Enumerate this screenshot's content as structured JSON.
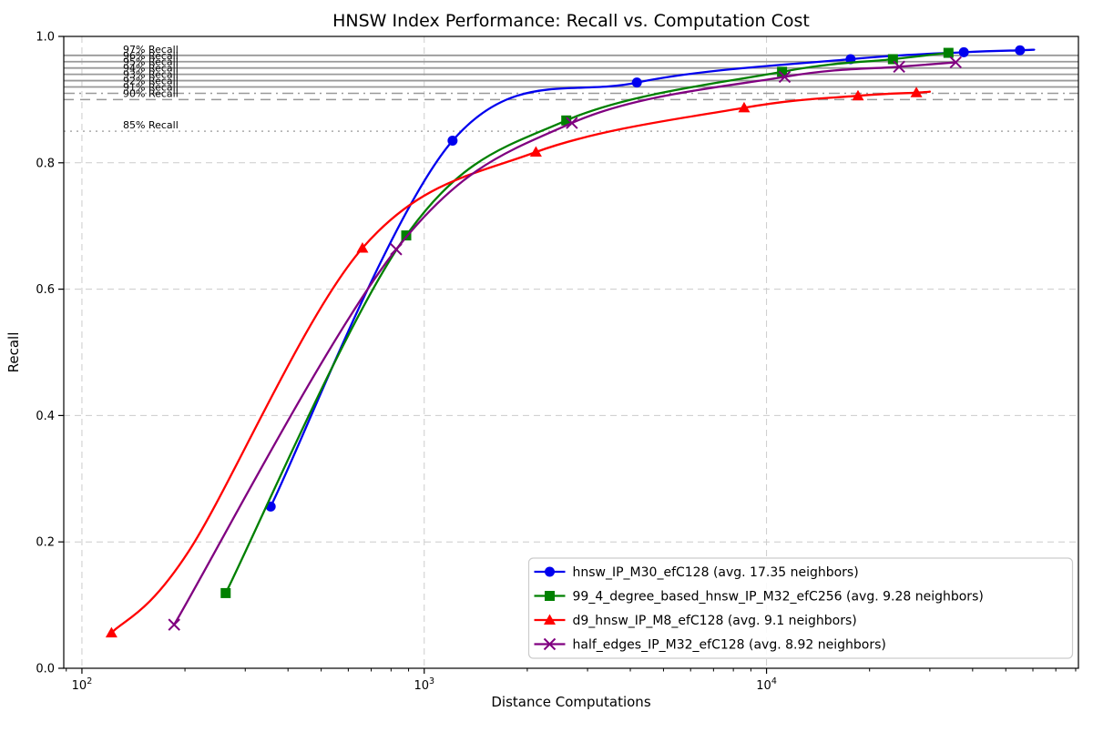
{
  "chart_data": {
    "type": "line",
    "title": "HNSW Index Performance: Recall vs. Computation Cost",
    "xlabel": "Distance Computations",
    "ylabel": "Recall",
    "x_scale": "log",
    "xlim": [
      88.5,
      81500
    ],
    "ylim": [
      0.0,
      1.0
    ],
    "grid": true,
    "legend_position": "lower right",
    "x_major_ticks": [
      {
        "value": 100,
        "base": "10",
        "exp": "2"
      },
      {
        "value": 1000,
        "base": "10",
        "exp": "3"
      },
      {
        "value": 10000,
        "base": "10",
        "exp": "4"
      }
    ],
    "y_ticks": [
      {
        "value": 0.0,
        "label": "0.0"
      },
      {
        "value": 0.2,
        "label": "0.2"
      },
      {
        "value": 0.4,
        "label": "0.4"
      },
      {
        "value": 0.6,
        "label": "0.6"
      },
      {
        "value": 0.8,
        "label": "0.8"
      },
      {
        "value": 1.0,
        "label": "1.0"
      }
    ],
    "reference_lines": [
      {
        "value": 0.97,
        "label": "97% Recall",
        "style": "solid"
      },
      {
        "value": 0.96,
        "label": "96% Recall",
        "style": "solid"
      },
      {
        "value": 0.95,
        "label": "95% Recall",
        "style": "solid"
      },
      {
        "value": 0.94,
        "label": "94% Recall",
        "style": "solid"
      },
      {
        "value": 0.93,
        "label": "93% Recall",
        "style": "solid"
      },
      {
        "value": 0.92,
        "label": "92% Recall",
        "style": "solid"
      },
      {
        "value": 0.91,
        "label": "91% Recall",
        "style": "dashdot"
      },
      {
        "value": 0.9,
        "label": "90% Recall",
        "style": "dashed"
      },
      {
        "value": 0.85,
        "label": "85% Recall",
        "style": "dotted"
      }
    ],
    "series": [
      {
        "name": "hnsw_IP_M30_efC128 (avg. 17.35 neighbors)",
        "color": "#0000ee",
        "marker": "circle",
        "x": [
          356,
          1210,
          4180,
          17600,
          37700,
          55000
        ],
        "y": [
          0.256,
          0.835,
          0.927,
          0.964,
          0.975,
          0.978
        ],
        "line_x": [
          356,
          1210,
          4180,
          17600,
          37700,
          55000,
          60500
        ],
        "line_y": [
          0.256,
          0.835,
          0.927,
          0.964,
          0.975,
          0.978,
          0.979
        ]
      },
      {
        "name": "99_4_degree_based_hnsw_IP_M32_efC256 (avg. 9.28 neighbors)",
        "color": "#008000",
        "marker": "square",
        "x": [
          263,
          886,
          2600,
          11100,
          23400,
          34000
        ],
        "y": [
          0.119,
          0.685,
          0.867,
          0.944,
          0.964,
          0.974
        ],
        "line_x": [
          263,
          886,
          2600,
          11100,
          23400,
          34000
        ],
        "line_y": [
          0.119,
          0.685,
          0.867,
          0.944,
          0.964,
          0.974
        ]
      },
      {
        "name": "d9_hnsw_IP_M8_efC128 (avg. 9.1 neighbors)",
        "color": "#ff0000",
        "marker": "triangle",
        "x": [
          122,
          660,
          2120,
          8600,
          18500,
          27400
        ],
        "y": [
          0.056,
          0.665,
          0.817,
          0.887,
          0.906,
          0.911
        ],
        "line_x": [
          122,
          205,
          660,
          2120,
          8600,
          18500,
          27400,
          30000
        ],
        "line_y": [
          0.056,
          0.185,
          0.665,
          0.817,
          0.887,
          0.906,
          0.911,
          0.9125
        ]
      },
      {
        "name": "half_edges_IP_M32_efC128 (avg. 8.92 neighbors)",
        "color": "#800080",
        "marker": "x",
        "x": [
          186,
          828,
          2700,
          11300,
          24400,
          35700
        ],
        "y": [
          0.069,
          0.663,
          0.863,
          0.936,
          0.952,
          0.959
        ],
        "line_x": [
          186,
          828,
          2700,
          11300,
          24400,
          35700
        ],
        "line_y": [
          0.069,
          0.663,
          0.863,
          0.936,
          0.952,
          0.959
        ]
      }
    ],
    "colors": {
      "grid": "#cccccc",
      "reference_solid": "#999999",
      "reference_dotted": "#aaaaaa",
      "spine": "#000000",
      "legend_border": "#cccccc"
    }
  }
}
